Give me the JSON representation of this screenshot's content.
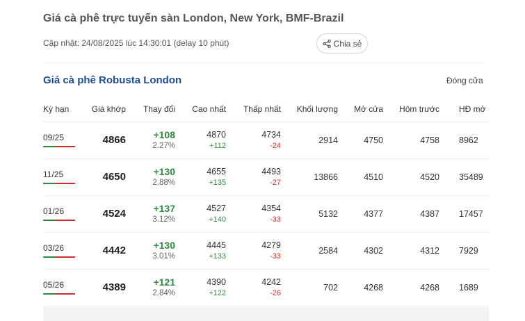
{
  "header": {
    "title": "Giá cà phê trực tuyến sàn London, New York, BMF-Brazil",
    "updated": "Cập nhật: 24/08/2025 lúc 14:30:01 (delay 10 phút)",
    "share_label": "Chia sẻ",
    "share_icon": "share-icon"
  },
  "section": {
    "title": "Giá cà phê Robusta London",
    "status": "Đóng cửa"
  },
  "colors": {
    "title_blue": "#1f4e96",
    "up_green": "#2e8b3e",
    "down_red": "#d62b2b"
  },
  "table": {
    "columns": [
      "Kỳ hạn",
      "Giá khớp",
      "Thay đổi",
      "Cao nhất",
      "Thấp nhất",
      "Khối lượng",
      "Mở cửa",
      "Hôm trước",
      "HĐ mở"
    ],
    "rows": [
      {
        "term": "09/25",
        "price": "4866",
        "change": "+108",
        "pct": "2.27%",
        "high": "4870",
        "high_diff": "+112",
        "low": "4734",
        "low_diff": "-24",
        "volume": "2914",
        "open": "4750",
        "prev": "4758",
        "oi": "8962"
      },
      {
        "term": "11/25",
        "price": "4650",
        "change": "+130",
        "pct": "2.88%",
        "high": "4655",
        "high_diff": "+135",
        "low": "4493",
        "low_diff": "-27",
        "volume": "13866",
        "open": "4510",
        "prev": "4520",
        "oi": "35489"
      },
      {
        "term": "01/26",
        "price": "4524",
        "change": "+137",
        "pct": "3.12%",
        "high": "4527",
        "high_diff": "+140",
        "low": "4354",
        "low_diff": "-33",
        "volume": "5132",
        "open": "4377",
        "prev": "4387",
        "oi": "17457"
      },
      {
        "term": "03/26",
        "price": "4442",
        "change": "+130",
        "pct": "3.01%",
        "high": "4445",
        "high_diff": "+133",
        "low": "4279",
        "low_diff": "-33",
        "volume": "2584",
        "open": "4302",
        "prev": "4312",
        "oi": "7929"
      },
      {
        "term": "05/26",
        "price": "4389",
        "change": "+121",
        "pct": "2.84%",
        "high": "4390",
        "high_diff": "+122",
        "low": "4242",
        "low_diff": "-26",
        "volume": "702",
        "open": "4268",
        "prev": "4268",
        "oi": "1689"
      }
    ]
  }
}
